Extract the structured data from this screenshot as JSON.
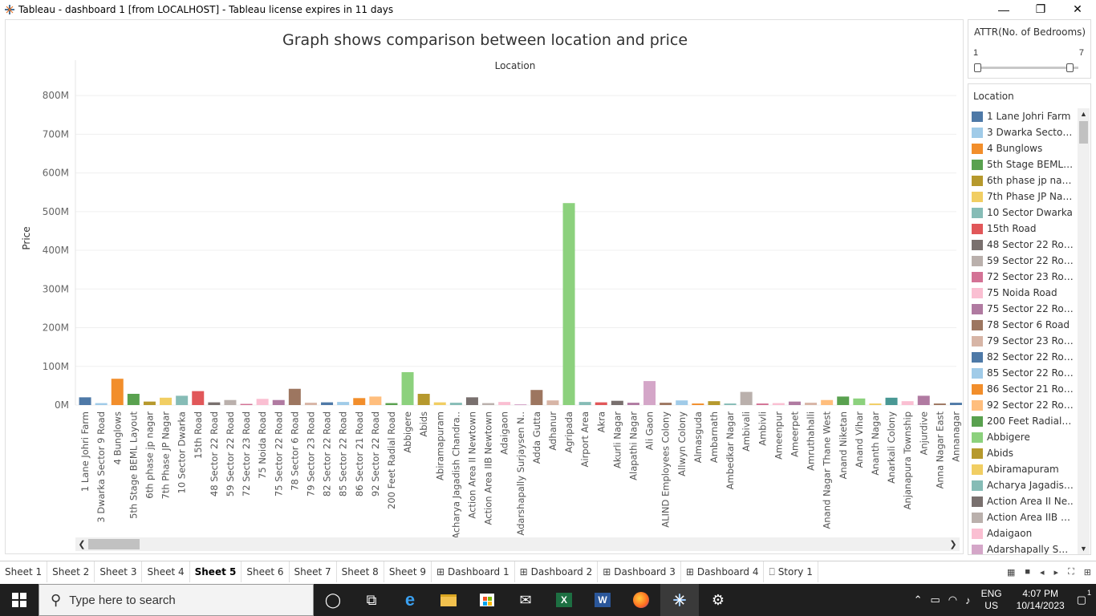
{
  "window": {
    "title": "Tableau - dashboard 1 [from LOCALHOST] - Tableau license expires in 11 days",
    "minimize_glyph": "—",
    "restore_glyph": "❐",
    "close_glyph": "✕"
  },
  "chart_data": {
    "type": "bar",
    "title": "Graph shows comparison between location and price",
    "column_header": "Location",
    "ylabel": "Price",
    "ylim": [
      0,
      850000000
    ],
    "yticks": [
      0,
      100000000,
      200000000,
      300000000,
      400000000,
      500000000,
      600000000,
      700000000,
      800000000
    ],
    "ytick_labels": [
      "0M",
      "100M",
      "200M",
      "300M",
      "400M",
      "500M",
      "600M",
      "700M",
      "800M"
    ],
    "gridlines": true,
    "legend_position": "right",
    "categories": [
      "1 Lane Johri Farm",
      "3 Dwarka Sector 9 Road",
      "4 Bunglows",
      "5th Stage BEML Layout",
      "6th phase jp nagar",
      "7th Phase JP Nagar",
      "10 Sector Dwarka",
      "15th Road",
      "48 Sector 22 Road",
      "59 Sector 22 Road",
      "72 Sector 23 Road",
      "75 Noida Road",
      "75 Sector 22 Road",
      "78 Sector 6 Road",
      "79 Sector 23 Road",
      "82 Sector 22 Road",
      "85 Sector 22 Road",
      "86 Sector 21 Road",
      "92 Sector 22 Road",
      "200 Feet Radial Road",
      "Abbigere",
      "Abids",
      "Abiramapuram",
      "Acharya Jagadish Chandra..",
      "Action Area II Newtown",
      "Action Area IIB Newtown",
      "Adaigaon",
      "Adarshapally Surjaysen N..",
      "Adda Gutta",
      "Adhanur",
      "Agripada",
      "Airport Area",
      "Akra",
      "Akurli Nagar",
      "Alapathi Nagar",
      "Ali Gaon",
      "ALIND Employees Colony",
      "Allwyn Colony",
      "Almasguda",
      "Ambarnath",
      "Ambedkar Nagar",
      "Ambivali",
      "Ambivli",
      "Ameenpur",
      "Ameerpet",
      "Amruthahalli",
      "Anand Nagar Thane West",
      "Anand Niketan",
      "Anand Vihar",
      "Ananth Nagar",
      "Anarkali Colony",
      "Anjanapura Township",
      "Anjurdive",
      "Anna Nagar East",
      "Annanagar"
    ],
    "values": [
      20000000,
      5000000,
      68000000,
      29000000,
      9000000,
      19000000,
      24000000,
      36000000,
      7000000,
      13000000,
      3000000,
      16000000,
      13000000,
      42000000,
      6000000,
      7000000,
      8000000,
      18000000,
      22000000,
      5000000,
      85000000,
      29000000,
      7000000,
      6000000,
      20000000,
      5000000,
      8000000,
      2000000,
      39000000,
      12000000,
      522000000,
      8000000,
      7000000,
      11000000,
      6000000,
      62000000,
      6000000,
      12000000,
      4000000,
      10000000,
      4000000,
      34000000,
      4000000,
      5000000,
      9000000,
      6000000,
      13000000,
      22000000,
      17000000,
      4000000,
      19000000,
      10000000,
      24000000,
      4000000,
      6000000
    ],
    "colors": [
      "#4e79a7",
      "#a0cbe8",
      "#f28e2b",
      "#59a14f",
      "#b6992d",
      "#f1ce63",
      "#86bcb6",
      "#e15759",
      "#79706e",
      "#bab0ac",
      "#d37295",
      "#fabfd2",
      "#b07aa1",
      "#9d7660",
      "#d7b5a6",
      "#4e79a7",
      "#a0cbe8",
      "#f28e2b",
      "#ffbe7d",
      "#59a14f",
      "#8cd17d",
      "#b6992d",
      "#f1ce63",
      "#86bcb6",
      "#79706e",
      "#bab0ac",
      "#fabfd2",
      "#d4a6c8",
      "#9d7660",
      "#d7b5a6",
      "#8cd17d",
      "#86bcb6",
      "#e15759",
      "#79706e",
      "#b07aa1",
      "#d4a6c8",
      "#9d7660",
      "#a0cbe8",
      "#f28e2b",
      "#b6992d",
      "#86bcb6",
      "#bab0ac",
      "#d37295",
      "#fabfd2",
      "#b07aa1",
      "#d7b5a6",
      "#ffbe7d",
      "#59a14f",
      "#8cd17d",
      "#f1ce63",
      "#499894",
      "#fabfd2",
      "#b07aa1",
      "#9d7660",
      "#4e79a7"
    ]
  },
  "filter": {
    "title": "ATTR(No. of Bedrooms)",
    "min_label": "1",
    "max_label": "7",
    "range_min": 1,
    "range_max": 7
  },
  "legend": {
    "title": "Location",
    "items": [
      {
        "label": "1 Lane Johri Farm",
        "color": "#4e79a7"
      },
      {
        "label": "3 Dwarka Sector ..",
        "color": "#a0cbe8"
      },
      {
        "label": "4 Bunglows",
        "color": "#f28e2b"
      },
      {
        "label": "5th Stage BEML L..",
        "color": "#59a14f"
      },
      {
        "label": "6th phase jp nagar",
        "color": "#b6992d"
      },
      {
        "label": "7th Phase JP Nag..",
        "color": "#f1ce63"
      },
      {
        "label": "10 Sector Dwarka",
        "color": "#86bcb6"
      },
      {
        "label": "15th Road",
        "color": "#e15759"
      },
      {
        "label": "48 Sector 22 Road",
        "color": "#79706e"
      },
      {
        "label": "59 Sector 22 Road",
        "color": "#bab0ac"
      },
      {
        "label": "72 Sector 23 Road",
        "color": "#d37295"
      },
      {
        "label": "75 Noida Road",
        "color": "#fabfd2"
      },
      {
        "label": "75 Sector 22 Road",
        "color": "#b07aa1"
      },
      {
        "label": "78 Sector 6 Road",
        "color": "#9d7660"
      },
      {
        "label": "79 Sector 23 Road",
        "color": "#d7b5a6"
      },
      {
        "label": "82 Sector 22 Road",
        "color": "#4e79a7"
      },
      {
        "label": "85 Sector 22 Road",
        "color": "#a0cbe8"
      },
      {
        "label": "86 Sector 21 Road",
        "color": "#f28e2b"
      },
      {
        "label": "92 Sector 22 Road",
        "color": "#ffbe7d"
      },
      {
        "label": "200 Feet Radial R..",
        "color": "#59a14f"
      },
      {
        "label": "Abbigere",
        "color": "#8cd17d"
      },
      {
        "label": "Abids",
        "color": "#b6992d"
      },
      {
        "label": "Abiramapuram",
        "color": "#f1ce63"
      },
      {
        "label": "Acharya Jagadish ..",
        "color": "#86bcb6"
      },
      {
        "label": "Action Area II Ne..",
        "color": "#79706e"
      },
      {
        "label": "Action Area IIB N..",
        "color": "#bab0ac"
      },
      {
        "label": "Adaigaon",
        "color": "#fabfd2"
      },
      {
        "label": "Adarshapally Surj..",
        "color": "#d4a6c8"
      }
    ]
  },
  "sheet_tabs": [
    {
      "label": "Sheet 1",
      "kind": "sheet",
      "active": false
    },
    {
      "label": "Sheet 2",
      "kind": "sheet",
      "active": false
    },
    {
      "label": "Sheet 3",
      "kind": "sheet",
      "active": false
    },
    {
      "label": "Sheet 4",
      "kind": "sheet",
      "active": false
    },
    {
      "label": "Sheet 5",
      "kind": "sheet",
      "active": true
    },
    {
      "label": "Sheet 6",
      "kind": "sheet",
      "active": false
    },
    {
      "label": "Sheet 7",
      "kind": "sheet",
      "active": false
    },
    {
      "label": "Sheet 8",
      "kind": "sheet",
      "active": false
    },
    {
      "label": "Sheet 9",
      "kind": "sheet",
      "active": false
    },
    {
      "label": "Dashboard 1",
      "kind": "dashboard",
      "active": false
    },
    {
      "label": "Dashboard 2",
      "kind": "dashboard",
      "active": false
    },
    {
      "label": "Dashboard 3",
      "kind": "dashboard",
      "active": false
    },
    {
      "label": "Dashboard 4",
      "kind": "dashboard",
      "active": false
    },
    {
      "label": "Story 1",
      "kind": "story",
      "active": false
    }
  ],
  "taskbar": {
    "search_placeholder": "Type here to search",
    "apps": [
      "cortana-icon",
      "task-view-icon",
      "edge-icon",
      "file-explorer-icon",
      "store-icon",
      "mail-icon",
      "excel-icon",
      "word-icon",
      "firefox-icon",
      "tableau-icon",
      "settings-icon"
    ],
    "language_top": "ENG",
    "language_bottom": "US",
    "time": "4:07 PM",
    "date": "10/14/2023",
    "notification_count": "1"
  }
}
